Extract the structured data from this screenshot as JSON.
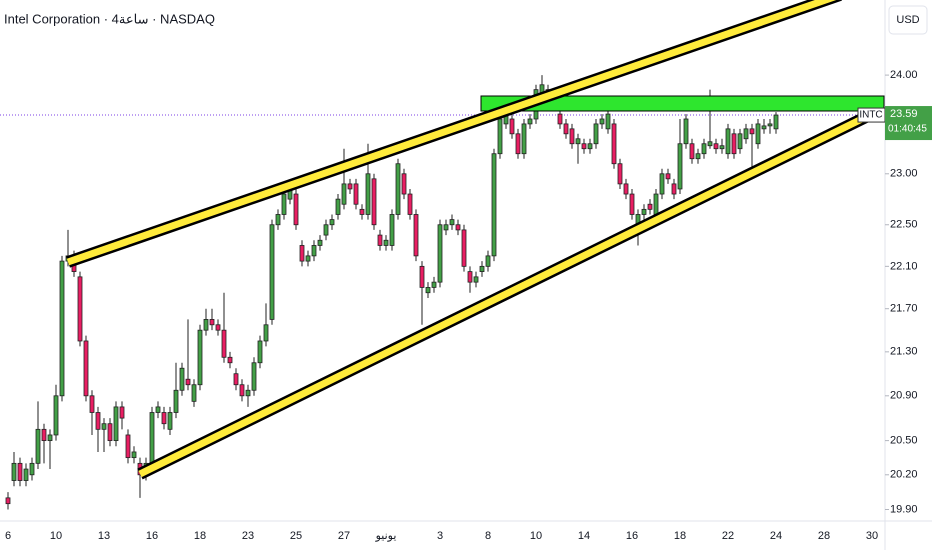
{
  "chart_data": {
    "type": "candlestick",
    "title": "Intel Corporation · 4ساعة · NASDAQ",
    "currency": "USD",
    "symbol": "INTC",
    "last_price": 23.59,
    "countdown": "01:40:45",
    "log_scale": true,
    "grid": false,
    "up_color": "#43a047",
    "down_color": "#e91e63",
    "ylim": [
      19.81,
      24.79
    ],
    "yticks": [
      {
        "value": 24,
        "label": "24.00"
      },
      {
        "value": 23,
        "label": "23.00"
      },
      {
        "value": 22.5,
        "label": "22.50"
      },
      {
        "value": 22.1,
        "label": "22.10"
      },
      {
        "value": 21.7,
        "label": "21.70"
      },
      {
        "value": 21.3,
        "label": "21.30"
      },
      {
        "value": 20.9,
        "label": "20.90"
      },
      {
        "value": 20.5,
        "label": "20.50"
      },
      {
        "value": 20.2,
        "label": "20.20"
      },
      {
        "value": 19.9,
        "label": "19.90"
      }
    ],
    "categories": [
      "6",
      null,
      null,
      null,
      null,
      null,
      null,
      null,
      "10",
      null,
      null,
      null,
      null,
      null,
      null,
      null,
      "13",
      null,
      null,
      null,
      null,
      null,
      null,
      null,
      "16",
      null,
      null,
      null,
      null,
      null,
      null,
      null,
      "18",
      null,
      null,
      null,
      null,
      null,
      null,
      null,
      "23",
      null,
      null,
      null,
      null,
      null,
      null,
      null,
      "25",
      null,
      null,
      null,
      null,
      null,
      null,
      null,
      "27",
      null,
      null,
      null,
      null,
      null,
      null,
      "يونيو",
      null,
      null,
      null,
      null,
      null,
      null,
      null,
      null,
      "3",
      null,
      null,
      null,
      null,
      null,
      null,
      null,
      "8",
      null,
      null,
      null,
      null,
      null,
      null,
      null,
      "10",
      null,
      null,
      null,
      null,
      null,
      null,
      null,
      "14",
      null,
      null,
      null,
      null,
      null,
      null,
      null,
      "16",
      null,
      null,
      null,
      null,
      null,
      null,
      null,
      "18",
      null,
      null,
      null,
      null,
      null,
      null,
      null,
      "22",
      null,
      null,
      null,
      null,
      null,
      null,
      null,
      "24",
      null,
      null,
      null,
      null,
      null,
      null,
      null,
      "28",
      null,
      null,
      null,
      null,
      null,
      null,
      null,
      "30"
    ],
    "open": [
      20.0,
      20.15,
      20.3,
      20.15,
      20.2,
      20.3,
      20.6,
      20.5,
      20.55,
      20.9,
      22.15,
      22.2,
      22.0,
      21.4,
      20.9,
      20.75,
      20.6,
      20.65,
      20.5,
      20.8,
      20.55,
      20.35,
      20.3,
      20.2,
      20.3,
      20.75,
      20.75,
      20.6,
      20.75,
      20.95,
      21.05,
      20.85,
      21.0,
      21.5,
      21.6,
      21.55,
      21.5,
      21.25,
      21.1,
      21.0,
      20.9,
      20.95,
      21.2,
      21.4,
      21.6,
      22.5,
      22.6,
      22.75,
      22.8,
      22.3,
      22.15,
      22.2,
      22.3,
      22.4,
      22.5,
      22.6,
      22.7,
      22.9,
      22.9,
      22.65,
      22.6,
      22.95,
      22.4,
      22.3,
      22.3,
      22.6,
      23.0,
      22.8,
      22.6,
      22.1,
      21.85,
      21.9,
      21.95,
      22.45,
      22.5,
      22.5,
      22.45,
      22.05,
      21.95,
      22.05,
      22.1,
      22.2,
      23.2,
      23.5,
      23.55,
      23.4,
      23.2,
      23.5,
      23.55,
      23.8,
      23.85,
      23.75,
      23.6,
      23.5,
      23.45,
      23.3,
      23.3,
      23.25,
      23.3,
      23.5,
      23.45,
      23.5,
      23.1,
      22.9,
      22.8,
      22.45,
      22.6,
      22.7,
      22.6,
      22.8,
      23.0,
      22.9,
      22.85,
      23.3,
      23.3,
      23.15,
      23.2,
      23.28,
      23.3,
      23.25,
      23.2,
      23.4,
      23.25,
      23.35,
      23.45,
      23.3,
      23.45,
      23.48,
      23.45,
      null,
      null,
      null,
      null,
      null,
      null,
      null,
      null,
      null,
      null,
      null,
      null,
      null,
      null,
      null,
      null
    ],
    "high": [
      20.05,
      20.4,
      20.35,
      20.3,
      20.35,
      20.85,
      20.65,
      20.6,
      21.0,
      22.2,
      22.45,
      22.25,
      22.05,
      21.45,
      20.95,
      20.8,
      20.7,
      20.7,
      20.85,
      20.85,
      20.6,
      20.45,
      20.35,
      20.35,
      20.8,
      20.85,
      20.8,
      20.8,
      21.2,
      21.2,
      21.6,
      21.05,
      21.55,
      21.7,
      21.7,
      21.6,
      21.85,
      21.3,
      21.15,
      21.05,
      21.0,
      21.25,
      21.45,
      21.75,
      22.55,
      22.65,
      22.85,
      22.9,
      22.85,
      22.35,
      22.25,
      22.35,
      22.4,
      22.55,
      22.6,
      22.8,
      23.25,
      22.95,
      22.95,
      22.7,
      23.3,
      23.0,
      22.45,
      22.4,
      22.65,
      23.15,
      23.05,
      22.85,
      22.65,
      22.15,
      21.95,
      22.0,
      22.55,
      22.55,
      22.6,
      22.55,
      22.5,
      22.1,
      22.05,
      22.15,
      22.25,
      23.25,
      23.6,
      23.65,
      23.6,
      23.45,
      23.55,
      23.6,
      23.9,
      24.0,
      23.9,
      23.8,
      23.65,
      23.55,
      23.5,
      23.4,
      23.35,
      23.35,
      23.55,
      23.6,
      23.65,
      23.55,
      23.15,
      22.95,
      22.85,
      22.65,
      22.7,
      22.75,
      22.85,
      23.05,
      23.05,
      22.95,
      23.55,
      23.6,
      23.35,
      23.25,
      23.35,
      23.85,
      23.35,
      23.35,
      23.5,
      23.45,
      23.45,
      23.5,
      23.5,
      23.55,
      23.55,
      23.55,
      23.62,
      null,
      null,
      null,
      null,
      null,
      null,
      null,
      null,
      null,
      null,
      null,
      null,
      null,
      null,
      null,
      null
    ],
    "low": [
      19.9,
      20.1,
      20.1,
      20.1,
      20.15,
      20.25,
      20.3,
      20.25,
      20.5,
      20.85,
      22.1,
      22.0,
      21.35,
      20.85,
      20.55,
      20.4,
      20.4,
      20.45,
      20.45,
      20.6,
      20.3,
      20.3,
      20.0,
      20.15,
      20.25,
      20.7,
      20.6,
      20.55,
      20.7,
      20.9,
      20.95,
      20.8,
      20.95,
      21.45,
      21.5,
      21.45,
      21.2,
      21.15,
      20.95,
      20.85,
      20.8,
      20.9,
      21.15,
      21.35,
      21.55,
      22.45,
      22.55,
      22.7,
      22.45,
      22.1,
      22.1,
      22.15,
      22.25,
      22.35,
      22.45,
      22.55,
      22.65,
      22.8,
      22.65,
      22.55,
      22.55,
      22.45,
      22.25,
      22.25,
      22.25,
      22.55,
      22.75,
      22.55,
      22.15,
      21.55,
      21.8,
      21.85,
      21.9,
      22.4,
      22.45,
      22.4,
      22.05,
      21.85,
      21.9,
      22.0,
      22.05,
      22.15,
      23.15,
      23.45,
      23.35,
      23.15,
      23.15,
      23.45,
      23.5,
      23.75,
      23.7,
      23.65,
      23.45,
      23.35,
      23.25,
      23.1,
      23.2,
      23.2,
      23.25,
      23.45,
      23.4,
      23.05,
      22.85,
      22.75,
      22.55,
      22.3,
      22.55,
      22.6,
      22.55,
      22.75,
      22.9,
      22.75,
      22.8,
      23.25,
      23.1,
      23.1,
      23.15,
      23.25,
      23.2,
      23.2,
      23.15,
      23.15,
      23.2,
      23.3,
      22.95,
      23.25,
      23.4,
      23.4,
      23.4,
      null,
      null,
      null,
      null,
      null,
      null,
      null,
      null,
      null,
      null,
      null,
      null,
      null,
      null,
      null,
      null
    ],
    "close": [
      19.95,
      20.3,
      20.15,
      20.25,
      20.3,
      20.6,
      20.5,
      20.55,
      20.9,
      22.15,
      22.2,
      22.05,
      21.4,
      20.9,
      20.75,
      20.6,
      20.65,
      20.5,
      20.8,
      20.7,
      20.35,
      20.4,
      20.2,
      20.3,
      20.75,
      20.8,
      20.65,
      20.75,
      20.95,
      21.15,
      21.0,
      21.0,
      21.5,
      21.6,
      21.55,
      21.5,
      21.25,
      21.2,
      21.0,
      20.9,
      20.95,
      21.2,
      21.4,
      21.55,
      22.5,
      22.6,
      22.8,
      22.85,
      22.5,
      22.15,
      22.2,
      22.3,
      22.35,
      22.5,
      22.55,
      22.75,
      22.9,
      22.85,
      22.7,
      22.6,
      23.0,
      22.5,
      22.3,
      22.35,
      22.6,
      23.1,
      22.8,
      22.6,
      22.2,
      21.9,
      21.9,
      21.95,
      22.5,
      22.5,
      22.55,
      22.45,
      22.1,
      21.95,
      22.0,
      22.1,
      22.2,
      23.2,
      23.55,
      23.6,
      23.4,
      23.2,
      23.5,
      23.55,
      23.85,
      23.9,
      23.75,
      23.7,
      23.5,
      23.4,
      23.3,
      23.35,
      23.25,
      23.3,
      23.5,
      23.55,
      23.6,
      23.1,
      22.9,
      22.8,
      22.6,
      22.6,
      22.65,
      22.65,
      22.8,
      23.0,
      22.95,
      22.8,
      23.3,
      23.55,
      23.15,
      23.2,
      23.3,
      23.32,
      23.25,
      23.28,
      23.45,
      23.2,
      23.4,
      23.45,
      23.4,
      23.5,
      23.48,
      23.5,
      23.59,
      null,
      null,
      null,
      null,
      null,
      null,
      null,
      null,
      null,
      null,
      null,
      null,
      null,
      null,
      null,
      null
    ]
  }
}
